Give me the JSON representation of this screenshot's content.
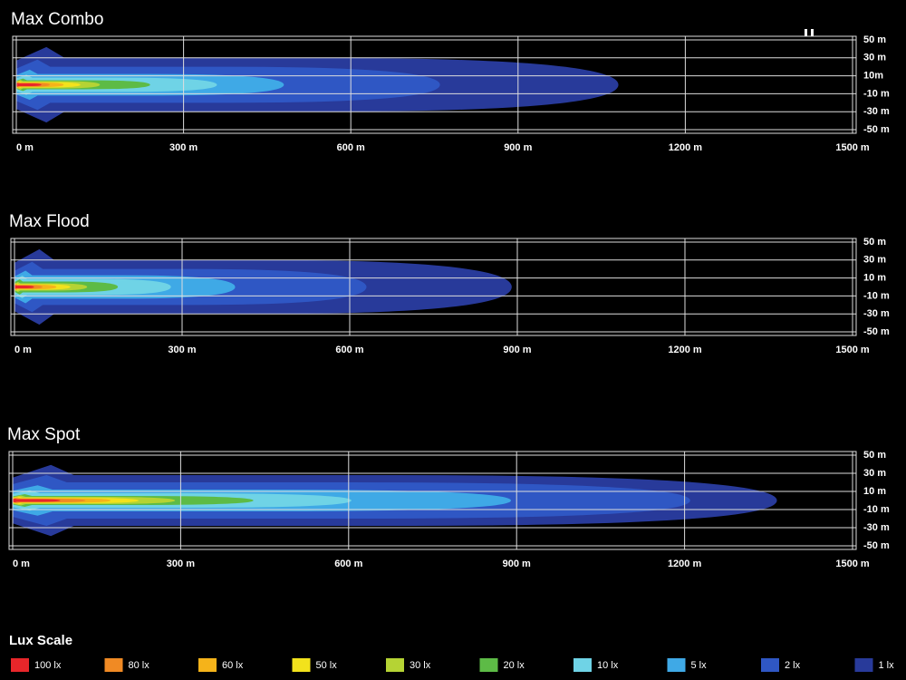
{
  "chart_data": [
    {
      "type": "beam",
      "title": "Max Combo",
      "xlim": [
        0,
        1500
      ],
      "xticks": [
        {
          "value": 0,
          "label": "0 m"
        },
        {
          "value": 300,
          "label": "300 m"
        },
        {
          "value": 600,
          "label": "600 m"
        },
        {
          "value": 900,
          "label": "900 m"
        },
        {
          "value": 1200,
          "label": "1200 m"
        },
        {
          "value": 1500,
          "label": "1500 m"
        }
      ],
      "ylim": [
        -54,
        54
      ],
      "yticks": [
        {
          "value": 50,
          "label": "50 m"
        },
        {
          "value": 30,
          "label": "30 m"
        },
        {
          "value": 10,
          "label": "10m"
        },
        {
          "value": -10,
          "label": "-10 m"
        },
        {
          "value": -30,
          "label": "-30 m"
        },
        {
          "value": -50,
          "label": "-50 m"
        }
      ],
      "reach": [
        45,
        60,
        85,
        115,
        150,
        240,
        360,
        480,
        760,
        1080
      ],
      "half_width": [
        1.5,
        2,
        2.5,
        3,
        4,
        5,
        8,
        12,
        20,
        30
      ]
    },
    {
      "type": "beam",
      "title": "Max Flood",
      "xlim": [
        0,
        1500
      ],
      "xticks": [
        {
          "value": 0,
          "label": "0 m"
        },
        {
          "value": 300,
          "label": "300 m"
        },
        {
          "value": 600,
          "label": "600 m"
        },
        {
          "value": 900,
          "label": "900 m"
        },
        {
          "value": 1200,
          "label": "1200 m"
        },
        {
          "value": 1500,
          "label": "1500 m"
        }
      ],
      "ylim": [
        -54,
        54
      ],
      "yticks": [
        {
          "value": 50,
          "label": "50 m"
        },
        {
          "value": 30,
          "label": "30 m"
        },
        {
          "value": 10,
          "label": "10 m"
        },
        {
          "value": -10,
          "label": "-10 m"
        },
        {
          "value": -30,
          "label": "-30 m"
        },
        {
          "value": -50,
          "label": "-50 m"
        }
      ],
      "reach": [
        35,
        50,
        75,
        100,
        130,
        185,
        280,
        395,
        630,
        890
      ],
      "half_width": [
        1.5,
        2,
        2.5,
        3,
        4,
        6,
        9,
        13,
        20,
        30
      ]
    },
    {
      "type": "beam",
      "title": "Max Spot",
      "xlim": [
        0,
        1500
      ],
      "xticks": [
        {
          "value": 0,
          "label": "0 m"
        },
        {
          "value": 300,
          "label": "300 m"
        },
        {
          "value": 600,
          "label": "600 m"
        },
        {
          "value": 900,
          "label": "900 m"
        },
        {
          "value": 1200,
          "label": "1200 m"
        },
        {
          "value": 1500,
          "label": "1500 m"
        }
      ],
      "ylim": [
        -54,
        54
      ],
      "yticks": [
        {
          "value": 50,
          "label": "50 m"
        },
        {
          "value": 30,
          "label": "30 m"
        },
        {
          "value": 10,
          "label": "10 m"
        },
        {
          "value": -10,
          "label": "-10 m"
        },
        {
          "value": -30,
          "label": "-30 m"
        },
        {
          "value": -50,
          "label": "-50 m"
        }
      ],
      "reach": [
        85,
        130,
        175,
        225,
        290,
        430,
        605,
        890,
        1210,
        1365
      ],
      "half_width": [
        1.5,
        2,
        2.5,
        3,
        4,
        5,
        8,
        12,
        20,
        28
      ]
    }
  ],
  "legend": {
    "title": "Lux Scale",
    "items": [
      {
        "name": "100 lx",
        "color": "#e8262a"
      },
      {
        "name": "80 lx",
        "color": "#f08a24"
      },
      {
        "name": "60 lx",
        "color": "#f5b31a"
      },
      {
        "name": "50 lx",
        "color": "#f2e21c"
      },
      {
        "name": "30 lx",
        "color": "#b5d334"
      },
      {
        "name": "20 lx",
        "color": "#5dbb46"
      },
      {
        "name": "10 lx",
        "color": "#6fd3e6"
      },
      {
        "name": "5 lx",
        "color": "#3fa9e6"
      },
      {
        "name": "2 lx",
        "color": "#2f57c4"
      },
      {
        "name": "1 lx",
        "color": "#283a9a"
      }
    ]
  }
}
